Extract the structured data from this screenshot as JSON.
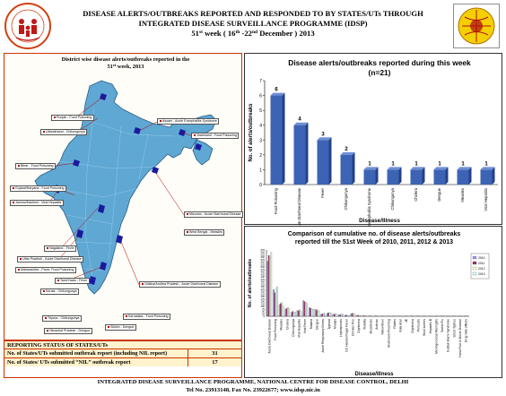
{
  "header": {
    "title_line1": "DISEASE ALERTS/OUTBREAKS REPORTED AND RESPONDED TO BY STATES/UTs THROUGH",
    "title_line2": "INTEGRATED DISEASE SURVEILLANCE PROGRAMME (IDSP)",
    "week_number": "51",
    "week_sup": "st",
    "week_text": " week  ( 16",
    "date_sup1": "th",
    "date_mid": " -22",
    "date_sup2": "nd",
    "date_end": " December ) 2013",
    "left_logo_text": "NATIONAL RURAL HEALTH MISSION",
    "right_logo_text": "IDSP"
  },
  "map": {
    "title_line1": "District wise disease alerts/outbreaks reported in the",
    "title_week": "51",
    "title_sup": "st",
    "title_line2_rest": "  week, 2013",
    "labels": [
      {
        "text": "Punjab - Food Poisoning"
      },
      {
        "text": "Uttarakhand - Chikungunya"
      },
      {
        "text": "Assam - Acute Encephalitis Syndrome"
      },
      {
        "text": "Jharkhand - Food Poisoning"
      },
      {
        "text": "Bihar - Food Poisoning"
      },
      {
        "text": "Gujarat/Haryana - Food Poisoning"
      },
      {
        "text": "Jammu/Kashmir - Viral Hepatitis"
      },
      {
        "text": "Nagaland - Fever"
      },
      {
        "text": "Mizoram - Acute Diarrhoeal Disease"
      },
      {
        "text": "Uttar Pradesh - Acute Diarrhoeal Disease"
      },
      {
        "text": "West Bengal - Measles"
      },
      {
        "text": "Maharashtra - Fever, Food Poisoning"
      },
      {
        "text": "Tamil Nadu - Fever"
      },
      {
        "text": "Kerala - Chikungunya"
      },
      {
        "text": "Odisha/Andhra Pradesh - Acute Diarrhoeal Disease"
      },
      {
        "text": "Tripura - Chikungunya"
      },
      {
        "text": "Karnataka - Food Poisoning"
      },
      {
        "text": "Sikkim - Dengue"
      },
      {
        "text": "Himachal Pradesh - Dengue"
      }
    ]
  },
  "status": {
    "heading": "REPORTING STATUS OF STATES/UTs",
    "rows": [
      {
        "label": "No. of States/UTs submitted outbreak report (including NIL report)",
        "value": "31"
      },
      {
        "label": "No. of States/ UTs submitted “NIL” outbreak report",
        "value": "17"
      }
    ]
  },
  "chart_data": [
    {
      "type": "bar",
      "title": "Disease alerts/outbreaks reported during this week",
      "subtitle": "(n=21)",
      "xlabel": "Disease/Illness",
      "ylabel": "No. of alerts/outbreaks",
      "ylim": [
        0,
        7
      ],
      "yticks": [
        0,
        1,
        2,
        3,
        4,
        5,
        6,
        7
      ],
      "grid": false,
      "categories": [
        "Food Poisoning",
        "Acute Diarrhoeal Disease",
        "Fever",
        "Chikungunya",
        "Acute Encephalitis Syndrome",
        "Chikungunya",
        "Cholera",
        "Dengue",
        "Measles",
        "Viral Hepatitis"
      ],
      "values": [
        6,
        4,
        3,
        2,
        1,
        1,
        1,
        1,
        1,
        1
      ],
      "bar_color": "#3d64b4"
    },
    {
      "type": "bar",
      "title": "Comparison of cumulative no. of disease alerts/outbreaks",
      "subtitle": "reported till the 51st Week of 2010, 2011, 2012 & 2013",
      "xlabel": "Disease/Illness",
      "ylabel": "No. of alerts/outbreaks",
      "ylim": [
        0,
        675
      ],
      "yticks": [
        0,
        25,
        50,
        75,
        100,
        125,
        150,
        175,
        200,
        225,
        250,
        275,
        300,
        325,
        350,
        375,
        400,
        425,
        450,
        475,
        500,
        525,
        550,
        575,
        600,
        625,
        650,
        675
      ],
      "legend": [
        "2010",
        "2011",
        "2012",
        "2013"
      ],
      "legend_placement": "top-right",
      "categories": [
        "Acute Diarrhoeal Disease",
        "Food Poisoning",
        "Measles",
        "Cholera",
        "Chikungunya",
        "Viral Hepatitis",
        "Viral Fever",
        "Malaria",
        "Dengue",
        "Acute Respiratory Illness",
        "Typhoid",
        "Mumps",
        "Leptospirosis",
        "CC Haemorrhagic Fever",
        "Chicken Pox",
        "Diphtheria",
        "Rubella",
        "Brucellosis",
        "Anthrax",
        "Yellow fever",
        "Mushroom Poisoning",
        "Rabies",
        "Kala Azar",
        "JE",
        "Diphtheria",
        "Pertussis",
        "Wool sorters",
        "Hepatitis B",
        "Meningococcal Meningitis",
        "Swine Flu",
        "Guillain Barre Syndrome",
        "Scrub Typhus",
        "Hand Foot & Mouth Disease",
        "Drug Side effects"
      ],
      "series": [
        {
          "name": "2010",
          "color": "#9999ff",
          "values": [
            560,
            270,
            120,
            70,
            40,
            60,
            160,
            90,
            70,
            20,
            30,
            20,
            18,
            10,
            25,
            8,
            6,
            4,
            5,
            2,
            3,
            4,
            3,
            2,
            5,
            1,
            1,
            1,
            2,
            1,
            1,
            2,
            1,
            1
          ]
        },
        {
          "name": "2011",
          "color": "#993366",
          "values": [
            620,
            240,
            130,
            80,
            50,
            55,
            150,
            80,
            60,
            25,
            35,
            22,
            15,
            12,
            30,
            10,
            5,
            5,
            4,
            2,
            3,
            3,
            2,
            3,
            4,
            1,
            1,
            1,
            2,
            1,
            1,
            2,
            1,
            1
          ]
        },
        {
          "name": "2012",
          "color": "#ffffcc",
          "values": [
            600,
            280,
            140,
            90,
            30,
            70,
            140,
            75,
            65,
            30,
            40,
            25,
            20,
            8,
            28,
            9,
            7,
            3,
            6,
            1,
            4,
            3,
            3,
            2,
            3,
            1,
            1,
            1,
            1,
            1,
            1,
            1,
            1,
            1
          ]
        },
        {
          "name": "2013",
          "color": "#ccffff",
          "values": [
            650,
            300,
            110,
            75,
            45,
            50,
            130,
            70,
            55,
            28,
            32,
            20,
            22,
            9,
            26,
            7,
            5,
            4,
            5,
            1,
            3,
            2,
            2,
            2,
            3,
            1,
            1,
            1,
            1,
            1,
            1,
            1,
            1,
            1
          ]
        }
      ]
    }
  ],
  "footer": {
    "line1": "INTEGRATED DISEASE SURVEILLANCE PROGRAMME, NATIONAL CENTRE FOR DISEASE CONTROL, DELHI",
    "line2": "Tel No. 23913148, Fax No. 23922677; www.idsp.nic.in"
  }
}
